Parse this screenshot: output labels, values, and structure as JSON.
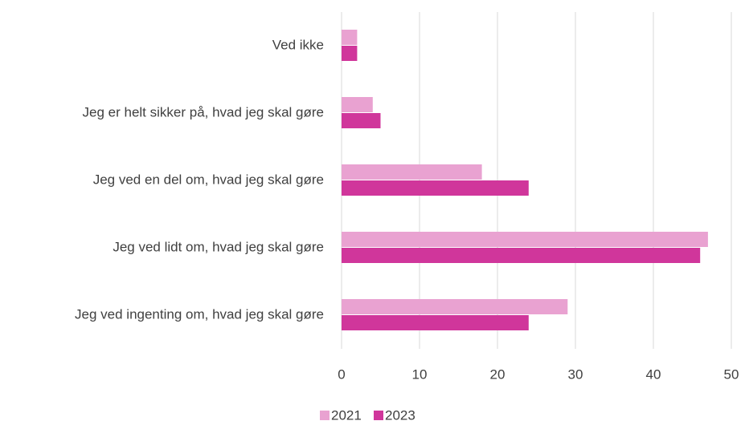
{
  "chart_data": {
    "type": "bar",
    "orientation": "horizontal",
    "categories": [
      "Ved ikke",
      "Jeg er helt sikker på, hvad jeg skal gøre",
      "Jeg ved en del om, hvad jeg skal gøre",
      "Jeg ved lidt om, hvad jeg skal gøre",
      "Jeg ved ingenting om, hvad jeg skal gøre"
    ],
    "series": [
      {
        "name": "2021",
        "color": "#e9a2d1",
        "values": [
          2,
          4,
          18,
          47,
          29
        ]
      },
      {
        "name": "2023",
        "color": "#d0369b",
        "values": [
          2,
          5,
          24,
          46,
          24
        ]
      }
    ],
    "xlim": [
      0,
      50
    ],
    "xticks": [
      0,
      10,
      20,
      30,
      40,
      50
    ],
    "grid": true,
    "legend": "bottom"
  }
}
